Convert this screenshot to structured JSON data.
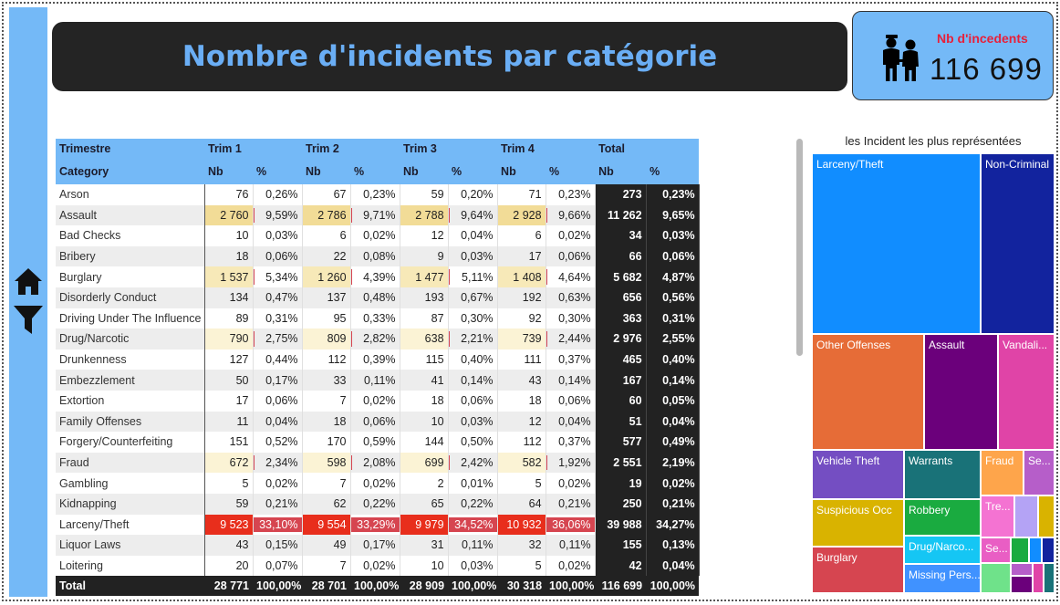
{
  "title": "Nombre d'incidents par catégorie",
  "kpi": {
    "label": "Nb d'incedents",
    "value": "116 699"
  },
  "sidebar": {
    "icons": [
      "home-icon",
      "filter-icon"
    ]
  },
  "matrix": {
    "header_top": [
      "Trimestre",
      "Trim 1",
      "Trim 2",
      "Trim 3",
      "Trim 4",
      "Total"
    ],
    "header_sub": [
      "Category",
      "Nb",
      "%",
      "Nb",
      "%",
      "Nb",
      "%",
      "Nb",
      "%",
      "Nb",
      "%"
    ],
    "rows": [
      {
        "cat": "Arson",
        "q": [
          [
            "76",
            "0,26%"
          ],
          [
            "67",
            "0,23%"
          ],
          [
            "59",
            "0,20%"
          ],
          [
            "71",
            "0,23%"
          ]
        ],
        "total": [
          "273",
          "0,23%"
        ]
      },
      {
        "cat": "Assault",
        "q": [
          [
            "2 760",
            "9,59%"
          ],
          [
            "2 786",
            "9,71%"
          ],
          [
            "2 788",
            "9,64%"
          ],
          [
            "2 928",
            "9,66%"
          ]
        ],
        "total": [
          "11 262",
          "9,65%"
        ]
      },
      {
        "cat": "Bad Checks",
        "q": [
          [
            "10",
            "0,03%"
          ],
          [
            "6",
            "0,02%"
          ],
          [
            "12",
            "0,04%"
          ],
          [
            "6",
            "0,02%"
          ]
        ],
        "total": [
          "34",
          "0,03%"
        ]
      },
      {
        "cat": "Bribery",
        "q": [
          [
            "18",
            "0,06%"
          ],
          [
            "22",
            "0,08%"
          ],
          [
            "9",
            "0,03%"
          ],
          [
            "17",
            "0,06%"
          ]
        ],
        "total": [
          "66",
          "0,06%"
        ]
      },
      {
        "cat": "Burglary",
        "q": [
          [
            "1 537",
            "5,34%"
          ],
          [
            "1 260",
            "4,39%"
          ],
          [
            "1 477",
            "5,11%"
          ],
          [
            "1 408",
            "4,64%"
          ]
        ],
        "total": [
          "5 682",
          "4,87%"
        ]
      },
      {
        "cat": "Disorderly Conduct",
        "q": [
          [
            "134",
            "0,47%"
          ],
          [
            "137",
            "0,48%"
          ],
          [
            "193",
            "0,67%"
          ],
          [
            "192",
            "0,63%"
          ]
        ],
        "total": [
          "656",
          "0,56%"
        ]
      },
      {
        "cat": "Driving Under The Influence",
        "q": [
          [
            "89",
            "0,31%"
          ],
          [
            "95",
            "0,33%"
          ],
          [
            "87",
            "0,30%"
          ],
          [
            "92",
            "0,30%"
          ]
        ],
        "total": [
          "363",
          "0,31%"
        ]
      },
      {
        "cat": "Drug/Narcotic",
        "q": [
          [
            "790",
            "2,75%"
          ],
          [
            "809",
            "2,82%"
          ],
          [
            "638",
            "2,21%"
          ],
          [
            "739",
            "2,44%"
          ]
        ],
        "total": [
          "2 976",
          "2,55%"
        ]
      },
      {
        "cat": "Drunkenness",
        "q": [
          [
            "127",
            "0,44%"
          ],
          [
            "112",
            "0,39%"
          ],
          [
            "115",
            "0,40%"
          ],
          [
            "111",
            "0,37%"
          ]
        ],
        "total": [
          "465",
          "0,40%"
        ]
      },
      {
        "cat": "Embezzlement",
        "q": [
          [
            "50",
            "0,17%"
          ],
          [
            "33",
            "0,11%"
          ],
          [
            "41",
            "0,14%"
          ],
          [
            "43",
            "0,14%"
          ]
        ],
        "total": [
          "167",
          "0,14%"
        ]
      },
      {
        "cat": "Extortion",
        "q": [
          [
            "17",
            "0,06%"
          ],
          [
            "7",
            "0,02%"
          ],
          [
            "18",
            "0,06%"
          ],
          [
            "18",
            "0,06%"
          ]
        ],
        "total": [
          "60",
          "0,05%"
        ]
      },
      {
        "cat": "Family Offenses",
        "q": [
          [
            "11",
            "0,04%"
          ],
          [
            "18",
            "0,06%"
          ],
          [
            "10",
            "0,03%"
          ],
          [
            "12",
            "0,04%"
          ]
        ],
        "total": [
          "51",
          "0,04%"
        ]
      },
      {
        "cat": "Forgery/Counterfeiting",
        "q": [
          [
            "151",
            "0,52%"
          ],
          [
            "170",
            "0,59%"
          ],
          [
            "144",
            "0,50%"
          ],
          [
            "112",
            "0,37%"
          ]
        ],
        "total": [
          "577",
          "0,49%"
        ]
      },
      {
        "cat": "Fraud",
        "q": [
          [
            "672",
            "2,34%"
          ],
          [
            "598",
            "2,08%"
          ],
          [
            "699",
            "2,42%"
          ],
          [
            "582",
            "1,92%"
          ]
        ],
        "total": [
          "2 551",
          "2,19%"
        ]
      },
      {
        "cat": "Gambling",
        "q": [
          [
            "5",
            "0,02%"
          ],
          [
            "7",
            "0,02%"
          ],
          [
            "2",
            "0,01%"
          ],
          [
            "5",
            "0,02%"
          ]
        ],
        "total": [
          "19",
          "0,02%"
        ]
      },
      {
        "cat": "Kidnapping",
        "q": [
          [
            "59",
            "0,21%"
          ],
          [
            "62",
            "0,22%"
          ],
          [
            "65",
            "0,22%"
          ],
          [
            "64",
            "0,21%"
          ]
        ],
        "total": [
          "250",
          "0,21%"
        ]
      },
      {
        "cat": "Larceny/Theft",
        "q": [
          [
            "9 523",
            "33,10%"
          ],
          [
            "9 554",
            "33,29%"
          ],
          [
            "9 979",
            "34,52%"
          ],
          [
            "10 932",
            "36,06%"
          ]
        ],
        "total": [
          "39 988",
          "34,27%"
        ]
      },
      {
        "cat": "Liquor Laws",
        "q": [
          [
            "43",
            "0,15%"
          ],
          [
            "49",
            "0,17%"
          ],
          [
            "31",
            "0,11%"
          ],
          [
            "32",
            "0,11%"
          ]
        ],
        "total": [
          "155",
          "0,13%"
        ]
      },
      {
        "cat": "Loitering",
        "q": [
          [
            "20",
            "0,07%"
          ],
          [
            "7",
            "0,02%"
          ],
          [
            "10",
            "0,03%"
          ],
          [
            "5",
            "0,02%"
          ]
        ],
        "total": [
          "42",
          "0,04%"
        ]
      }
    ],
    "footer": {
      "cat": "Total",
      "q": [
        [
          "28 771",
          "100,00%"
        ],
        [
          "28 701",
          "100,00%"
        ],
        [
          "28 909",
          "100,00%"
        ],
        [
          "30 318",
          "100,00%"
        ]
      ],
      "total": [
        "116 699",
        "100,00%"
      ]
    }
  },
  "treemap": {
    "title": "les Incident les plus représentées",
    "tiles": [
      {
        "label": "Larceny/Theft",
        "color": "#118dff"
      },
      {
        "label": "Non-Criminal",
        "color": "#12239e"
      },
      {
        "label": "Other Offenses",
        "color": "#e66c37"
      },
      {
        "label": "Assault",
        "color": "#6b007b"
      },
      {
        "label": "Vandali...",
        "color": "#e044a7"
      },
      {
        "label": "Vehicle Theft",
        "color": "#744ec2"
      },
      {
        "label": "Warrants",
        "color": "#197278"
      },
      {
        "label": "Fraud",
        "color": "#fea54b"
      },
      {
        "label": "Se...",
        "color": "#b65ec9"
      },
      {
        "label": "Suspicious Occ",
        "color": "#d9b300"
      },
      {
        "label": "Robbery",
        "color": "#1aab40"
      },
      {
        "label": "Tre...",
        "color": "#f473d2"
      },
      {
        "label": "Burglary",
        "color": "#d64550"
      },
      {
        "label": "Drug/Narco...",
        "color": "#15c6f4"
      },
      {
        "label": "Se...",
        "color": "#e95ec4"
      },
      {
        "label": "Missing Pers...",
        "color": "#4092ff"
      },
      {
        "label": "",
        "color": "#b4a3f5"
      },
      {
        "label": "",
        "color": "#d9b300"
      },
      {
        "label": "",
        "color": "#1aab40"
      },
      {
        "label": "",
        "color": "#118dff"
      },
      {
        "label": "",
        "color": "#12239e"
      },
      {
        "label": "",
        "color": "#b65ec9"
      },
      {
        "label": "",
        "color": "#6fe28a"
      },
      {
        "label": "",
        "color": "#6b007b"
      },
      {
        "label": "",
        "color": "#e044a7"
      },
      {
        "label": "",
        "color": "#197278"
      }
    ]
  }
}
